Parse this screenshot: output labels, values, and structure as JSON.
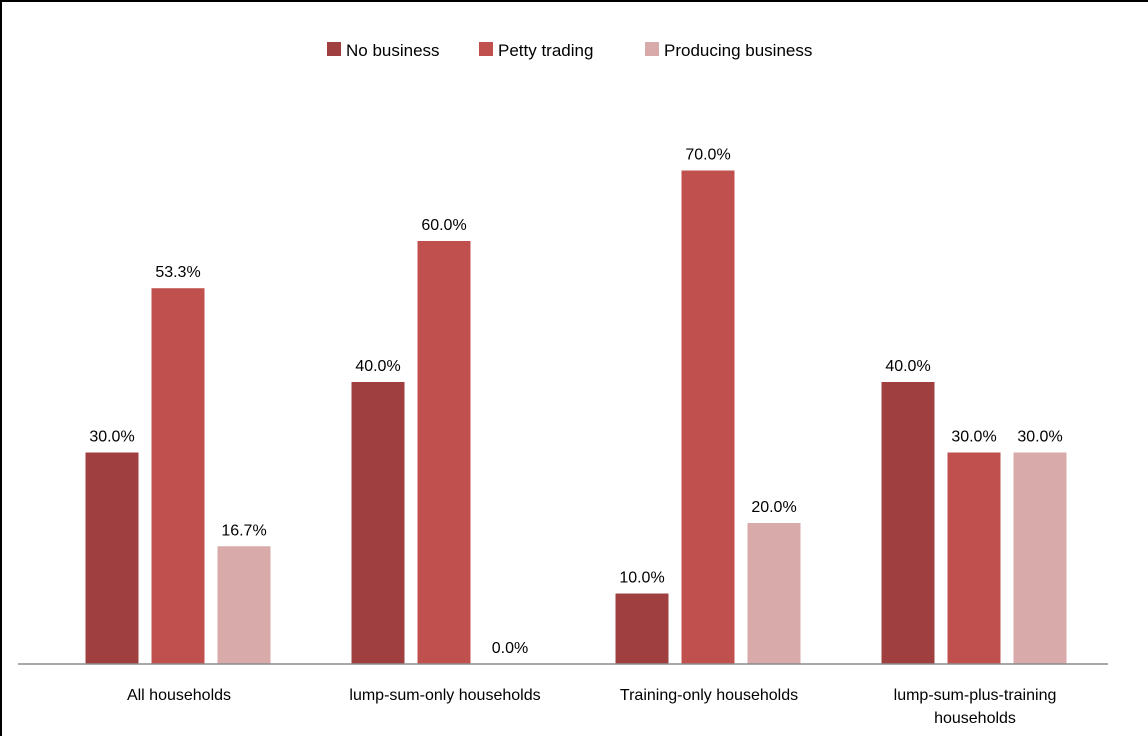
{
  "chart_data": {
    "type": "bar",
    "title": "",
    "xlabel": "",
    "ylabel": "",
    "ylim": [
      0,
      100
    ],
    "grid": false,
    "legend_position": "top",
    "categories": [
      [
        "All households"
      ],
      [
        "lump-sum-only households"
      ],
      [
        "Training-only households"
      ],
      [
        "lump-sum-plus-training",
        "households"
      ]
    ],
    "series": [
      {
        "name": "No business",
        "color": "#a03f3f",
        "values": [
          30.0,
          40.0,
          10.0,
          40.0
        ],
        "labels": [
          "30.0%",
          "40.0%",
          "10.0%",
          "40.0%"
        ]
      },
      {
        "name": "Petty trading",
        "color": "#c0504d",
        "values": [
          53.3,
          60.0,
          70.0,
          30.0
        ],
        "labels": [
          "53.3%",
          "60.0%",
          "70.0%",
          "30.0%"
        ]
      },
      {
        "name": "Producing business",
        "color": "#d9aaaa",
        "values": [
          16.7,
          0.0,
          20.0,
          30.0
        ],
        "labels": [
          "16.7%",
          "0.0%",
          "20.0%",
          "30.0%"
        ]
      }
    ]
  }
}
